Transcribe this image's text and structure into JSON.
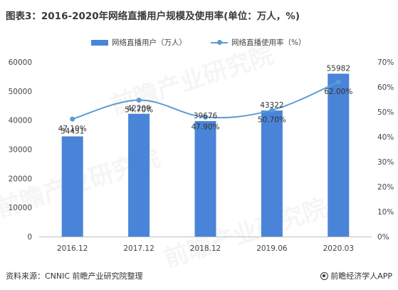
{
  "title": "图表3：2016-2020年网络直播用户规模及使用率(单位：万人，%)",
  "legend": {
    "bar_label": "网络直播用户（万人）",
    "line_label": "网络直播使用率（%）"
  },
  "footer": {
    "source": "资料来源：CNNIC 前瞻产业研究院整理",
    "brand": "前瞻经济学人APP"
  },
  "watermark": "前瞻产业研究院",
  "colors": {
    "bar": "#4a84d8",
    "line": "#5b9bd5",
    "grid": "#d9d9d9"
  },
  "chart_data": {
    "type": "bar",
    "categories": [
      "2016.12",
      "2017.12",
      "2018.12",
      "2019.06",
      "2020.03"
    ],
    "series": [
      {
        "name": "网络直播用户（万人）",
        "type": "bar",
        "axis": "left",
        "values": [
          34431,
          42209,
          39676,
          43322,
          55982
        ],
        "labels": [
          "34431",
          "42209",
          "39676",
          "43322",
          "55982"
        ]
      },
      {
        "name": "网络直播使用率（%）",
        "type": "line",
        "axis": "right",
        "values": [
          47.1,
          54.7,
          47.9,
          50.7,
          62.0
        ],
        "labels": [
          "47.10%",
          "54.70%",
          "47.90%",
          "50.70%",
          "62.00%"
        ]
      }
    ],
    "y_left": {
      "ylim": [
        0,
        60000
      ],
      "ticks": [
        "0",
        "10000",
        "20000",
        "30000",
        "40000",
        "50000",
        "60000"
      ]
    },
    "y_right": {
      "ylim": [
        0,
        70
      ],
      "ticks": [
        "0%",
        "10%",
        "20%",
        "30%",
        "40%",
        "50%",
        "60%",
        "70%"
      ]
    },
    "grid": false,
    "legend_position": "top-center"
  }
}
